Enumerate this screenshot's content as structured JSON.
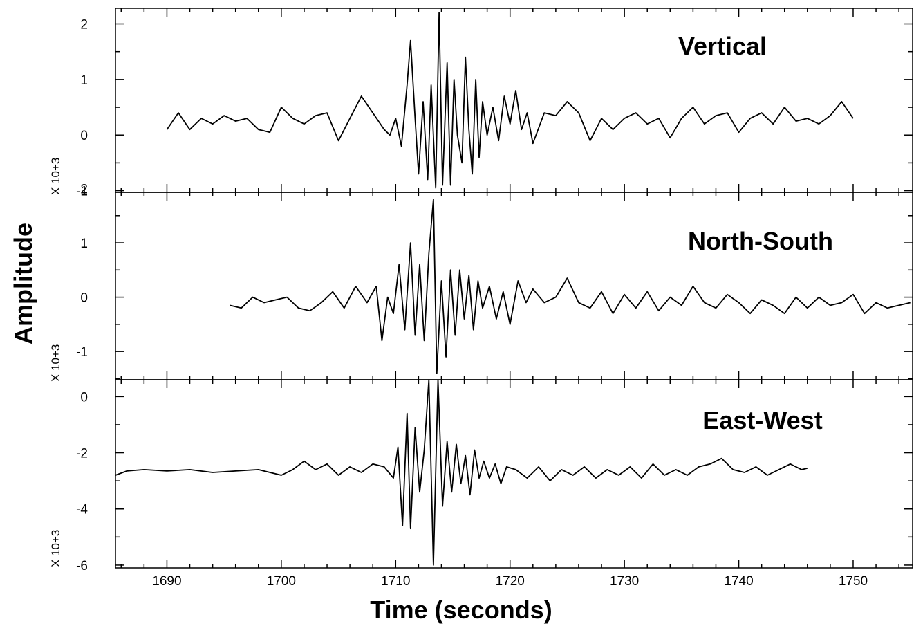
{
  "chart_data": [
    {
      "type": "line",
      "title": "Vertical",
      "xlabel": "Time (seconds)",
      "ylabel": "Amplitude",
      "y_multiplier": "X 10+3",
      "xlim": [
        1685.5,
        1755.2
      ],
      "ylim": [
        -1.03,
        2.28
      ],
      "xticks": [
        1690,
        1700,
        1710,
        1720,
        1730,
        1740,
        1750
      ],
      "yticks": [
        -1,
        0,
        1,
        2
      ],
      "ytick_labels": [
        "-1",
        "0",
        "1",
        "2"
      ],
      "x": [
        1690,
        1691,
        1692,
        1693,
        1694,
        1695,
        1696,
        1697,
        1698,
        1699,
        1700,
        1701,
        1702,
        1703,
        1704,
        1705,
        1706,
        1707,
        1708,
        1709,
        1709.5,
        1710,
        1710.5,
        1711,
        1711.3,
        1711.7,
        1712,
        1712.4,
        1712.8,
        1713.1,
        1713.5,
        1713.8,
        1714.1,
        1714.5,
        1714.8,
        1715.1,
        1715.4,
        1715.8,
        1716.1,
        1716.4,
        1716.7,
        1717,
        1717.3,
        1717.6,
        1718,
        1718.5,
        1719,
        1719.5,
        1720,
        1720.5,
        1721,
        1721.5,
        1722,
        1723,
        1724,
        1725,
        1726,
        1727,
        1728,
        1729,
        1730,
        1731,
        1732,
        1733,
        1734,
        1735,
        1736,
        1737,
        1738,
        1739,
        1740,
        1741,
        1742,
        1743,
        1744,
        1745,
        1746,
        1747,
        1748,
        1749,
        1750
      ],
      "values": [
        0.1,
        0.4,
        0.1,
        0.3,
        0.2,
        0.35,
        0.25,
        0.3,
        0.1,
        0.05,
        0.5,
        0.3,
        0.2,
        0.35,
        0.4,
        -0.1,
        0.3,
        0.7,
        0.4,
        0.1,
        0.0,
        0.3,
        -0.2,
        0.9,
        1.7,
        0.3,
        -0.7,
        0.6,
        -0.8,
        0.9,
        -0.95,
        2.2,
        -0.9,
        1.3,
        -0.9,
        1.0,
        0.0,
        -0.5,
        1.4,
        0.1,
        -0.7,
        1.0,
        -0.4,
        0.6,
        0.0,
        0.5,
        -0.1,
        0.7,
        0.2,
        0.8,
        0.1,
        0.4,
        -0.15,
        0.4,
        0.35,
        0.6,
        0.4,
        -0.1,
        0.3,
        0.1,
        0.3,
        0.4,
        0.2,
        0.3,
        -0.05,
        0.3,
        0.5,
        0.2,
        0.35,
        0.4,
        0.05,
        0.3,
        0.4,
        0.2,
        0.5,
        0.25,
        0.3,
        0.2,
        0.35,
        0.6,
        0.3
      ]
    },
    {
      "type": "line",
      "title": "North-South",
      "y_multiplier": "X 10+3",
      "xlim": [
        1685.5,
        1755.2
      ],
      "ylim": [
        -1.52,
        1.93
      ],
      "xticks": [
        1690,
        1700,
        1710,
        1720,
        1730,
        1740,
        1750
      ],
      "yticks": [
        -1,
        0,
        1,
        2
      ],
      "ytick_labels": [
        "-1",
        "0",
        "1",
        "2"
      ],
      "x": [
        1695.5,
        1696.5,
        1697.5,
        1698.5,
        1699.5,
        1700.5,
        1701.5,
        1702.5,
        1703.5,
        1704.5,
        1705.5,
        1706.5,
        1707.5,
        1708.3,
        1708.8,
        1709.3,
        1709.8,
        1710.3,
        1710.8,
        1711.3,
        1711.7,
        1712.1,
        1712.5,
        1712.9,
        1713.3,
        1713.6,
        1714,
        1714.4,
        1714.8,
        1715.2,
        1715.6,
        1716,
        1716.4,
        1716.8,
        1717.2,
        1717.6,
        1718.2,
        1718.8,
        1719.4,
        1720,
        1720.7,
        1721.4,
        1722,
        1723,
        1724,
        1725,
        1726,
        1727,
        1728,
        1729,
        1730,
        1731,
        1732,
        1733,
        1734,
        1735,
        1736,
        1737,
        1738,
        1739,
        1740,
        1741,
        1742,
        1743,
        1744,
        1745,
        1746,
        1747,
        1748,
        1749,
        1750,
        1751,
        1752,
        1753,
        1754,
        1755
      ],
      "values": [
        -0.15,
        -0.2,
        0.0,
        -0.1,
        -0.05,
        0.0,
        -0.2,
        -0.25,
        -0.1,
        0.1,
        -0.2,
        0.2,
        -0.1,
        0.2,
        -0.8,
        0.0,
        -0.3,
        0.6,
        -0.6,
        1.0,
        -0.7,
        0.6,
        -0.8,
        0.8,
        1.8,
        -1.4,
        0.3,
        -1.1,
        0.5,
        -0.7,
        0.5,
        -0.4,
        0.4,
        -0.6,
        0.3,
        -0.2,
        0.2,
        -0.4,
        0.1,
        -0.5,
        0.3,
        -0.1,
        0.15,
        -0.1,
        0.0,
        0.35,
        -0.1,
        -0.2,
        0.1,
        -0.3,
        0.05,
        -0.2,
        0.1,
        -0.25,
        0.0,
        -0.15,
        0.2,
        -0.1,
        -0.2,
        0.05,
        -0.1,
        -0.3,
        -0.05,
        -0.15,
        -0.3,
        0.0,
        -0.2,
        0.0,
        -0.15,
        -0.1,
        0.05,
        -0.3,
        -0.1,
        -0.2,
        -0.15,
        -0.1
      ]
    },
    {
      "type": "line",
      "title": "East-West",
      "y_multiplier": "X 10+3",
      "xlim": [
        1685.5,
        1755.2
      ],
      "ylim": [
        -6.1,
        0.6
      ],
      "xticks": [
        1690,
        1700,
        1710,
        1720,
        1730,
        1740,
        1750
      ],
      "yticks": [
        -6,
        -4,
        -2,
        0
      ],
      "ytick_labels": [
        "-6",
        "-4",
        "-2",
        "0"
      ],
      "x": [
        1685.5,
        1686.5,
        1688,
        1690,
        1692,
        1694,
        1696,
        1698,
        1700,
        1701,
        1702,
        1703,
        1704,
        1705,
        1706,
        1707,
        1708,
        1709,
        1709.8,
        1710.2,
        1710.6,
        1711,
        1711.3,
        1711.7,
        1712.1,
        1712.5,
        1712.9,
        1713.3,
        1713.7,
        1714.1,
        1714.5,
        1714.9,
        1715.3,
        1715.7,
        1716.1,
        1716.5,
        1716.9,
        1717.3,
        1717.7,
        1718.2,
        1718.7,
        1719.2,
        1719.7,
        1720.5,
        1721.5,
        1722.5,
        1723.5,
        1724.5,
        1725.5,
        1726.5,
        1727.5,
        1728.5,
        1729.5,
        1730.5,
        1731.5,
        1732.5,
        1733.5,
        1734.5,
        1735.5,
        1736.5,
        1737.5,
        1738.5,
        1739.5,
        1740.5,
        1741.5,
        1742.5,
        1743.5,
        1744.5,
        1745.5,
        1746
      ],
      "values": [
        -2.8,
        -2.65,
        -2.6,
        -2.65,
        -2.6,
        -2.7,
        -2.65,
        -2.6,
        -2.8,
        -2.6,
        -2.3,
        -2.6,
        -2.4,
        -2.8,
        -2.5,
        -2.7,
        -2.4,
        -2.5,
        -2.9,
        -1.8,
        -4.6,
        -0.6,
        -4.7,
        -1.1,
        -3.4,
        -1.9,
        0.6,
        -6.0,
        0.6,
        -3.9,
        -1.6,
        -3.4,
        -1.7,
        -3.1,
        -2.1,
        -3.5,
        -1.9,
        -2.9,
        -2.3,
        -2.9,
        -2.4,
        -3.1,
        -2.5,
        -2.6,
        -2.9,
        -2.5,
        -3.0,
        -2.6,
        -2.8,
        -2.5,
        -2.9,
        -2.6,
        -2.8,
        -2.5,
        -2.9,
        -2.4,
        -2.8,
        -2.6,
        -2.8,
        -2.5,
        -2.4,
        -2.2,
        -2.6,
        -2.7,
        -2.5,
        -2.8,
        -2.6,
        -2.4,
        -2.6,
        -2.55
      ]
    }
  ]
}
